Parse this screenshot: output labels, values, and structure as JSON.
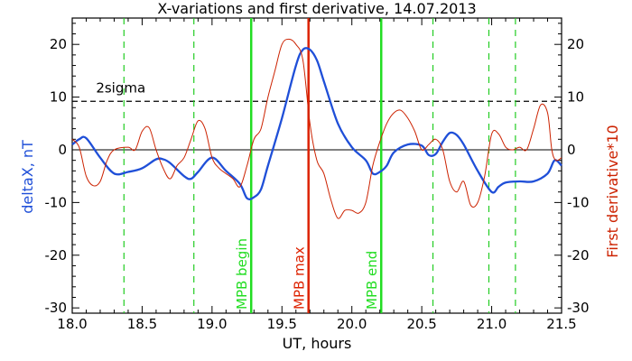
{
  "chart_data": {
    "type": "line",
    "title": "X-variations and first derivative, 14.07.2013",
    "xlabel": "UT, hours",
    "ylabel_left": "deltaX, nT",
    "ylabel_right": "First derivative*10",
    "xlim": [
      18.0,
      21.5
    ],
    "ylim": [
      -31,
      25
    ],
    "xticks": [
      "18.0",
      "18.5",
      "19.0",
      "19.5",
      "20.0",
      "20.5",
      "21.0",
      "21.5"
    ],
    "yticks_left": [
      "20",
      "10",
      "0",
      "-10",
      "-20",
      "-30"
    ],
    "yticks_right": [
      "20",
      "10",
      "0",
      "-10",
      "-20",
      "-30"
    ],
    "colors": {
      "deltaX": "#1f4fd8",
      "derivative": "#cc2200",
      "mpb": "#22dd22",
      "max": "#dd2200",
      "dashed_green": "#22cc22",
      "sigma": "#000000"
    },
    "series": [
      {
        "role": "deltaX",
        "x": [
          18.0,
          18.05,
          18.1,
          18.2,
          18.3,
          18.4,
          18.5,
          18.6,
          18.65,
          18.7,
          18.8,
          18.85,
          18.9,
          19.0,
          19.1,
          19.2,
          19.25,
          19.3,
          19.35,
          19.4,
          19.5,
          19.6,
          19.65,
          19.7,
          19.75,
          19.8,
          19.9,
          20.0,
          20.1,
          20.15,
          20.2,
          20.25,
          20.3,
          20.4,
          20.5,
          20.55,
          20.6,
          20.65,
          20.7,
          20.75,
          20.8,
          20.9,
          21.0,
          21.05,
          21.1,
          21.2,
          21.3,
          21.4,
          21.45,
          21.5
        ],
        "values": [
          1.0,
          2.0,
          2.2,
          -1.5,
          -4.5,
          -4.2,
          -3.5,
          -1.8,
          -1.8,
          -2.5,
          -5.0,
          -5.5,
          -4.2,
          -1.5,
          -4.0,
          -6.5,
          -9.2,
          -9.0,
          -7.5,
          -3.0,
          6.0,
          16.0,
          19.0,
          19.0,
          17.0,
          13.0,
          5.0,
          0.5,
          -2.0,
          -4.5,
          -4.2,
          -3.0,
          -0.5,
          1.0,
          0.8,
          -1.0,
          -0.8,
          1.5,
          3.2,
          2.8,
          1.0,
          -4.0,
          -8.0,
          -7.0,
          -6.2,
          -6.0,
          -6.0,
          -4.5,
          -2.0,
          -3.0
        ]
      },
      {
        "role": "derivative",
        "x": [
          18.0,
          18.05,
          18.1,
          18.15,
          18.2,
          18.25,
          18.3,
          18.4,
          18.45,
          18.5,
          18.55,
          18.6,
          18.65,
          18.7,
          18.75,
          18.8,
          18.85,
          18.9,
          18.95,
          19.0,
          19.05,
          19.1,
          19.15,
          19.2,
          19.25,
          19.3,
          19.35,
          19.4,
          19.45,
          19.5,
          19.55,
          19.6,
          19.65,
          19.7,
          19.75,
          19.8,
          19.85,
          19.9,
          19.95,
          20.0,
          20.05,
          20.1,
          20.15,
          20.2,
          20.25,
          20.3,
          20.35,
          20.4,
          20.45,
          20.5,
          20.55,
          20.6,
          20.65,
          20.7,
          20.75,
          20.8,
          20.85,
          20.9,
          20.95,
          21.0,
          21.05,
          21.1,
          21.15,
          21.2,
          21.25,
          21.3,
          21.35,
          21.4,
          21.43,
          21.46,
          21.5
        ],
        "values": [
          2.0,
          0.5,
          -5.0,
          -6.8,
          -6.0,
          -2.0,
          0.0,
          0.5,
          0.0,
          3.5,
          4.2,
          0.0,
          -3.5,
          -5.5,
          -3.0,
          -1.5,
          2.0,
          5.5,
          4.0,
          -1.5,
          -3.5,
          -4.5,
          -5.5,
          -7.0,
          -3.0,
          2.0,
          4.0,
          10.0,
          15.0,
          20.0,
          21.0,
          20.0,
          17.0,
          5.0,
          -2.0,
          -4.5,
          -9.5,
          -13.0,
          -11.5,
          -11.5,
          -12.0,
          -10.0,
          -3.0,
          1.5,
          5.0,
          7.0,
          7.5,
          6.0,
          3.5,
          0.0,
          1.0,
          2.0,
          0.0,
          -6.0,
          -8.0,
          -6.0,
          -10.5,
          -10.0,
          -5.0,
          3.0,
          3.0,
          0.5,
          0.0,
          0.5,
          0.0,
          4.0,
          8.5,
          7.0,
          0.0,
          -2.0,
          -1.5
        ]
      }
    ],
    "sigma_level": 9.2,
    "dashed_verticals": [
      18.37,
      18.87,
      20.58,
      20.98,
      21.17
    ],
    "mpb_begin_x": 19.28,
    "mpb_max_x": 19.69,
    "mpb_end_x": 20.21,
    "annotations": {
      "sigma": "2sigma",
      "begin": "MPB begin",
      "max": "MPB max",
      "end": "MPB end"
    }
  }
}
